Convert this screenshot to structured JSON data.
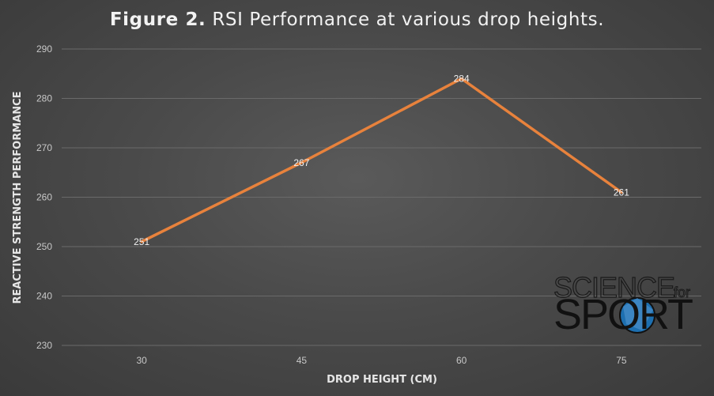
{
  "title_bold": "Figure 2.",
  "title_rest": " RSI Performance at various drop heights.",
  "colors": {
    "line": "#e8823c",
    "grid": "#6a6a6a",
    "tick": "#c8c8c8"
  },
  "logo": {
    "line1_main": "SCIENCE",
    "line1_small": "for",
    "line2": "SPORT"
  },
  "chart_data": {
    "type": "line",
    "title": "Figure 2. RSI Performance at various drop heights.",
    "xlabel": "DROP HEIGHT (CM)",
    "ylabel": "REACTIVE STRENGTH PERFORMANCE",
    "categories": [
      "30",
      "45",
      "60",
      "75"
    ],
    "values": [
      251,
      267,
      284,
      261
    ],
    "data_labels": [
      "251",
      "267",
      "284",
      "261"
    ],
    "ylim": [
      230,
      290
    ],
    "yticks": [
      "230",
      "240",
      "250",
      "260",
      "270",
      "280",
      "290"
    ],
    "grid": true,
    "legend": "none"
  }
}
